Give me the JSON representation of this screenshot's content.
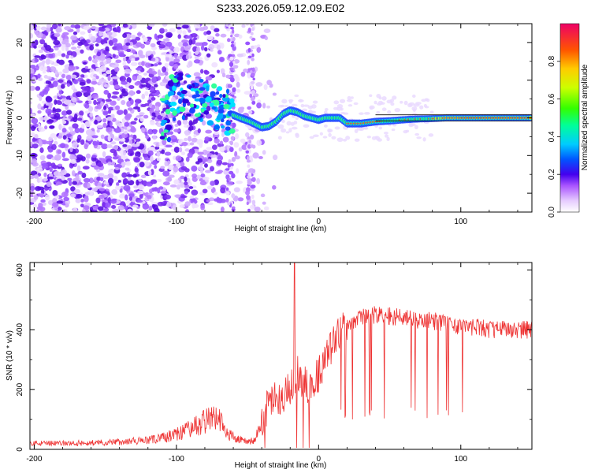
{
  "chart_data": [
    {
      "type": "heatmap",
      "title": "S233.2026.059.12.09.E02",
      "xlabel": "Height of straight line (km)",
      "ylabel": "Frequency (Hz)",
      "xlim": [
        -203,
        150
      ],
      "ylim": [
        -25,
        25
      ],
      "xticks": [
        -200,
        -100,
        0,
        100
      ],
      "xtick_labels": [
        "-200",
        "-100",
        "0",
        "100"
      ],
      "yticks": [
        -20,
        -10,
        0,
        10,
        20
      ],
      "ytick_labels": [
        "-20",
        "-10",
        "0",
        "10",
        "20"
      ],
      "ridge": {
        "x": [
          -105,
          -95,
          -85,
          -75,
          -65,
          -55,
          -48,
          -40,
          -35,
          -30,
          -25,
          -20,
          -15,
          -10,
          -5,
          0,
          5,
          10,
          15,
          20,
          30,
          40,
          50,
          60,
          70,
          80,
          90,
          100,
          110,
          120,
          130,
          140,
          150
        ],
        "y": [
          5,
          6,
          5,
          3,
          1.5,
          0,
          -1,
          -2.5,
          -2.2,
          -1,
          1,
          2,
          1.5,
          0.5,
          0,
          -0.5,
          0,
          0,
          0,
          -1.5,
          -1.5,
          -1,
          -0.8,
          -0.5,
          -0.3,
          -0.2,
          0,
          0,
          0,
          0,
          0,
          0,
          0
        ]
      },
      "colorbar": {
        "label": "Normalized spectral amplitude",
        "range": [
          0,
          1
        ],
        "ticks": [
          0.0,
          0.2,
          0.4,
          0.6,
          0.8
        ],
        "tick_labels": [
          "0.0",
          "0.2",
          "0.4",
          "0.6",
          "0.8"
        ]
      }
    },
    {
      "type": "line",
      "xlabel": "Height of straight line (km)",
      "ylabel": "SNR (10 * v/v)",
      "xlim": [
        -203,
        150
      ],
      "ylim": [
        0,
        625
      ],
      "xticks": [
        -200,
        -100,
        0,
        100
      ],
      "xtick_labels": [
        "-200",
        "-100",
        "0",
        "100"
      ],
      "yticks": [
        0,
        200,
        400,
        600
      ],
      "ytick_labels": [
        "0",
        "200",
        "400",
        "600"
      ],
      "color": "#ee3333",
      "series": [
        {
          "name": "SNR",
          "x": [
            -203,
            -180,
            -160,
            -140,
            -120,
            -110,
            -100,
            -90,
            -85,
            -80,
            -75,
            -70,
            -65,
            -60,
            -55,
            -50,
            -45,
            -40,
            -35,
            -30,
            -25,
            -20,
            -18,
            -15,
            -10,
            -5,
            0,
            5,
            10,
            15,
            20,
            25,
            30,
            35,
            40,
            50,
            60,
            70,
            80,
            90,
            100,
            110,
            120,
            130,
            140,
            150
          ],
          "values": [
            20,
            20,
            22,
            25,
            30,
            38,
            50,
            70,
            80,
            95,
            110,
            100,
            60,
            40,
            30,
            25,
            30,
            80,
            160,
            170,
            180,
            200,
            230,
            260,
            220,
            210,
            250,
            310,
            350,
            390,
            420,
            430,
            440,
            445,
            450,
            445,
            440,
            430,
            430,
            420,
            410,
            410,
            400,
            405,
            400,
            400
          ]
        }
      ]
    }
  ]
}
